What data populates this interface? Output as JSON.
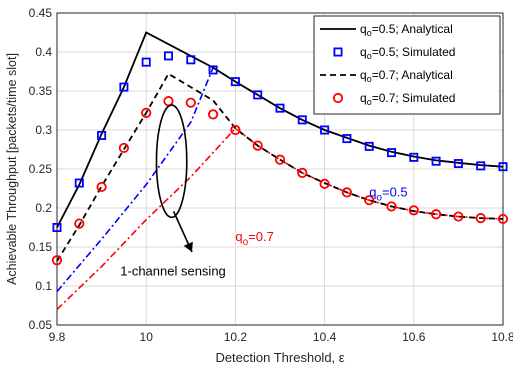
{
  "chart_data": {
    "type": "line",
    "xlabel": "Detection Threshold, ε",
    "ylabel": "Achievable Throughput [packets/time slot]",
    "xlim": [
      9.8,
      10.8
    ],
    "ylim": [
      0.05,
      0.45
    ],
    "x_ticks": [
      "9.8",
      "10",
      "10.2",
      "10.4",
      "10.6",
      "10.8"
    ],
    "y_ticks": [
      "0.05",
      "0.1",
      "0.15",
      "0.2",
      "0.25",
      "0.3",
      "0.35",
      "0.4",
      "0.45"
    ],
    "grid": true,
    "legend_position": "top-right",
    "legend": [
      {
        "label": "q",
        "sub": "o",
        "rest": "=0.5; Analytical",
        "style": "solid-black"
      },
      {
        "label": "q",
        "sub": "o",
        "rest": "=0.5; Simulated",
        "style": "square-blue"
      },
      {
        "label": "q",
        "sub": "o",
        "rest": "=0.7; Analytical",
        "style": "dashed-black"
      },
      {
        "label": "q",
        "sub": "o",
        "rest": "=0.7; Simulated",
        "style": "circle-red"
      }
    ],
    "series": [
      {
        "name": "q_o=0.5; Analytical",
        "color": "#000000",
        "x": [
          9.8,
          9.85,
          9.9,
          9.95,
          10.0,
          10.05,
          10.1,
          10.15,
          10.2,
          10.25,
          10.3,
          10.35,
          10.4,
          10.45,
          10.5,
          10.55,
          10.6,
          10.65,
          10.7,
          10.75,
          10.8
        ],
        "y": [
          0.175,
          0.23,
          0.295,
          0.355,
          0.425,
          0.41,
          0.395,
          0.38,
          0.362,
          0.345,
          0.328,
          0.313,
          0.3,
          0.29,
          0.28,
          0.272,
          0.266,
          0.261,
          0.258,
          0.255,
          0.253
        ]
      },
      {
        "name": "q_o=0.5; Simulated",
        "color": "#0000ff",
        "x": [
          9.8,
          9.85,
          9.9,
          9.95,
          10.0,
          10.05,
          10.1,
          10.15,
          10.2,
          10.25,
          10.3,
          10.35,
          10.4,
          10.45,
          10.5,
          10.55,
          10.6,
          10.65,
          10.7,
          10.75,
          10.8
        ],
        "y": [
          0.175,
          0.232,
          0.293,
          0.355,
          0.387,
          0.395,
          0.39,
          0.377,
          0.362,
          0.345,
          0.328,
          0.313,
          0.3,
          0.289,
          0.279,
          0.271,
          0.265,
          0.26,
          0.257,
          0.254,
          0.253
        ]
      },
      {
        "name": "q_o=0.7; Analytical",
        "color": "#000000",
        "x": [
          9.8,
          9.85,
          9.9,
          9.95,
          10.0,
          10.05,
          10.1,
          10.15,
          10.2,
          10.25,
          10.3,
          10.35,
          10.4,
          10.45,
          10.5,
          10.55,
          10.6,
          10.65,
          10.7,
          10.75,
          10.8
        ],
        "y": [
          0.132,
          0.178,
          0.228,
          0.275,
          0.322,
          0.372,
          0.355,
          0.338,
          0.302,
          0.28,
          0.262,
          0.245,
          0.232,
          0.22,
          0.21,
          0.202,
          0.196,
          0.192,
          0.189,
          0.187,
          0.186
        ]
      },
      {
        "name": "q_o=0.7; Simulated",
        "color": "#ff0000",
        "x": [
          9.8,
          9.85,
          9.9,
          9.95,
          10.0,
          10.05,
          10.1,
          10.15,
          10.2,
          10.25,
          10.3,
          10.35,
          10.4,
          10.45,
          10.5,
          10.55,
          10.6,
          10.65,
          10.7,
          10.75,
          10.8
        ],
        "y": [
          0.133,
          0.18,
          0.227,
          0.277,
          0.322,
          0.337,
          0.335,
          0.32,
          0.3,
          0.28,
          0.262,
          0.245,
          0.231,
          0.22,
          0.21,
          0.202,
          0.197,
          0.192,
          0.189,
          0.187,
          0.186
        ]
      },
      {
        "name": "",
        "color": "#0000ff",
        "x": [
          9.8,
          9.9,
          10.0,
          10.1,
          10.15,
          10.2,
          10.25,
          10.3,
          10.35,
          10.4,
          10.45,
          10.5,
          10.55,
          10.6,
          10.65,
          10.7,
          10.75,
          10.8
        ],
        "y": [
          0.093,
          0.16,
          0.23,
          0.31,
          0.38,
          0.362,
          0.345,
          0.328,
          0.313,
          0.3,
          0.29,
          0.28,
          0.272,
          0.266,
          0.261,
          0.258,
          0.255,
          0.253
        ]
      },
      {
        "name": "",
        "color": "#ff0000",
        "x": [
          9.8,
          9.9,
          10.0,
          10.1,
          10.2,
          10.25,
          10.3,
          10.35,
          10.4,
          10.45,
          10.5,
          10.55,
          10.6,
          10.65,
          10.7,
          10.75,
          10.8
        ],
        "y": [
          0.07,
          0.125,
          0.185,
          0.24,
          0.302,
          0.28,
          0.262,
          0.245,
          0.232,
          0.22,
          0.21,
          0.202,
          0.196,
          0.192,
          0.189,
          0.187,
          0.186
        ]
      }
    ],
    "annotations": {
      "label_q05": {
        "q": "q",
        "sub": "o",
        "rest": "=0.5",
        "color": "#0000ff",
        "x": 10.5,
        "y": 0.215
      },
      "label_q07": {
        "q": "q",
        "sub": "o",
        "rest": "=0.7",
        "color": "#ff0000",
        "x": 10.2,
        "y": 0.158
      },
      "sensing": {
        "text": "1-channel sensing",
        "x": 9.98,
        "y": 0.115
      },
      "ellipse": {
        "cx": 10.057,
        "cy": 0.26,
        "rx": 0.034,
        "ry": 0.072
      }
    }
  }
}
